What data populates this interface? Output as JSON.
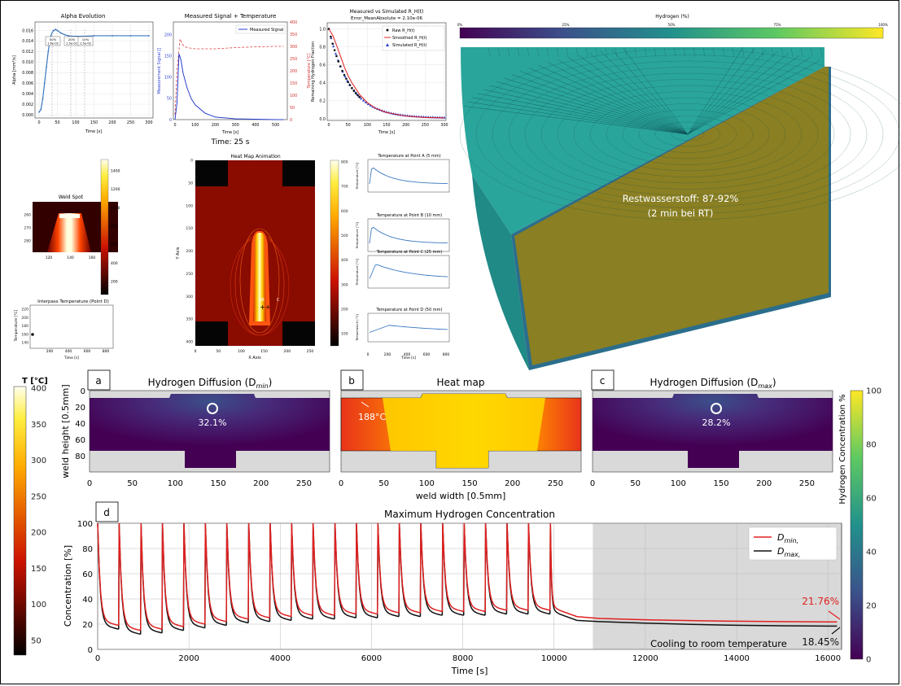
{
  "top_left": {
    "alpha": {
      "title": "Alpha Evolution",
      "ylabel": "Alpha [mm²/s]",
      "xlabel": "Time [s]",
      "xticks": [
        "0",
        "50",
        "100",
        "150",
        "200",
        "250",
        "300"
      ],
      "yticks": [
        "0.000",
        "0.002",
        "0.004",
        "0.006",
        "0.008",
        "0.010",
        "0.012",
        "0.014",
        "0.016"
      ],
      "markers": [
        "50%\n1.6e-02",
        "20%\n1.5e-02",
        "10%\n1.5e-02"
      ],
      "marker_labels": [
        "50%",
        "20%",
        "10%"
      ],
      "marker_values": [
        "1.6e-02",
        "1.5e-02",
        "1.5e-02"
      ],
      "chart_data": {
        "type": "line",
        "x": [
          0,
          5,
          10,
          15,
          20,
          25,
          30,
          35,
          40,
          45,
          50,
          60,
          70,
          80,
          90,
          100,
          120,
          150,
          200,
          250,
          300
        ],
        "y": [
          0.0005,
          0.001,
          0.003,
          0.006,
          0.009,
          0.012,
          0.0145,
          0.0155,
          0.016,
          0.0162,
          0.016,
          0.0155,
          0.0152,
          0.015,
          0.0149,
          0.0149,
          0.0149,
          0.015,
          0.015,
          0.015,
          0.015
        ],
        "xlim": [
          0,
          300
        ],
        "ylim": [
          0,
          0.017
        ]
      }
    },
    "signal": {
      "title": "Measured Signal + Temperature",
      "legend": "Measured Signal",
      "ylabel_left": "Measurement Signal []",
      "ylabel_right": "Temperature [°C]",
      "xlabel": "Time [s]",
      "xticks": [
        "0",
        "100",
        "200",
        "300",
        "400",
        "500"
      ],
      "yticks_left": [
        "0",
        "50",
        "100",
        "150",
        "200"
      ],
      "yticks_right": [
        "0",
        "50",
        "100",
        "150",
        "200",
        "250",
        "300",
        "350",
        "400"
      ],
      "chart_data": {
        "type": "line",
        "signal_x": [
          0,
          10,
          20,
          30,
          40,
          60,
          80,
          100,
          150,
          200,
          300,
          400,
          500,
          540
        ],
        "signal_y": [
          0,
          40,
          155,
          140,
          110,
          75,
          50,
          35,
          15,
          6,
          2,
          1,
          0,
          0
        ],
        "temp_x": [
          0,
          10,
          25,
          40,
          60,
          100,
          200,
          300,
          400,
          500,
          540
        ],
        "temp_y": [
          20,
          200,
          330,
          305,
          295,
          290,
          290,
          295,
          298,
          300,
          300
        ],
        "xlim": [
          0,
          550
        ],
        "ylim_left": [
          0,
          230
        ],
        "ylim_right": [
          0,
          400
        ]
      }
    },
    "time_label": "Time: 25 s",
    "remaining": {
      "title": "Measured vs Simulated R_H(t)",
      "subtitle": "Error_MeanAbsolute = 2.10e-06",
      "ylabel": "Remaining Hydrogen Fraction",
      "xlabel": "Time [s]",
      "legend": [
        "Raw R_H(t)",
        "Smoothed R_H(t)",
        "Simulated R_H(t)"
      ],
      "xticks": [
        "0",
        "50",
        "100",
        "150",
        "200",
        "250",
        "300"
      ],
      "yticks": [
        "0.0",
        "0.2",
        "0.4",
        "0.6",
        "0.8",
        "1.0"
      ],
      "chart_data": {
        "type": "scatter",
        "x": [
          0,
          10,
          20,
          30,
          40,
          50,
          60,
          80,
          100,
          120,
          150,
          200,
          250,
          300
        ],
        "y": [
          1.0,
          0.93,
          0.82,
          0.7,
          0.58,
          0.48,
          0.4,
          0.27,
          0.18,
          0.12,
          0.07,
          0.03,
          0.015,
          0.01
        ],
        "xlim": [
          0,
          300
        ],
        "ylim": [
          0,
          1.05
        ]
      }
    },
    "hydrogen_bar": {
      "title": "Hydrogen (%)",
      "ticks": [
        "0%",
        "25%",
        "50%",
        "75%",
        "100%"
      ]
    },
    "cylinder_label_1": "Restwasserstoff: 87-92%",
    "cylinder_label_2": "(2 min bei RT)",
    "weld_spot": {
      "title": "Weld Spot",
      "yticks": [
        "260",
        "270",
        "280"
      ],
      "xticks": [
        "120",
        "140",
        "160"
      ],
      "cbar_ticks": [
        "200",
        "400",
        "600",
        "800",
        "1000",
        "1200",
        "1400"
      ]
    },
    "interpass": {
      "title": "Interpass Temperature (Point D)",
      "ylabel": "Temperature [°C]",
      "xlabel": "Time [s]",
      "yticks": [
        "140",
        "160",
        "180",
        "200",
        "220"
      ],
      "xticks": [
        "200",
        "400",
        "600",
        "800"
      ]
    },
    "heatmap_anim": {
      "title": "Heat Map Animation",
      "ylabel": "Y Axis",
      "xlabel": "X Axis",
      "yticks": [
        "0",
        "50",
        "100",
        "150",
        "200",
        "250",
        "300",
        "350",
        "400"
      ],
      "xticks": [
        "0",
        "50",
        "100",
        "150",
        "200",
        "250"
      ],
      "cbar_ticks": [
        "100",
        "200",
        "300",
        "400",
        "500",
        "600",
        "700",
        "800"
      ],
      "points": "AB",
      "point_c": "C"
    },
    "point_plots": [
      {
        "title": "Temperature at Point A (5 mm)",
        "ylabel": "Temperature [°C]"
      },
      {
        "title": "Temperature at Point B (10 mm)",
        "ylabel": "Temperature [°C]"
      },
      {
        "title": "Temperature at Point C (25 mm)",
        "ylabel": "Temperature [°C]"
      },
      {
        "title": "Temperature at Point D (50 mm)",
        "ylabel": "Temperature [°C]"
      }
    ],
    "point_xlabel": "Time [s]",
    "point_xticks": [
      "0",
      "200",
      "400",
      "600",
      "800"
    ]
  },
  "panels": {
    "a": {
      "letter": "a",
      "title": "Hydrogen Diffusion (D",
      "title_sub": "min",
      "value": "32.1%"
    },
    "b": {
      "letter": "b",
      "title": "Heat map",
      "value": "188°C"
    },
    "c": {
      "letter": "c",
      "title": "Hydrogen Diffusion (D",
      "title_sub": "max",
      "value": "28.2%"
    },
    "ylabel": "weld height [0.5mm]",
    "xlabel": "weld width [0.5mm]",
    "yticks": [
      "0",
      "20",
      "40",
      "60",
      "80"
    ],
    "xticks": [
      "0",
      "50",
      "100",
      "150",
      "200",
      "250"
    ]
  },
  "temp_cbar": {
    "title": "T [°C]",
    "ticks": [
      "400",
      "350",
      "300",
      "250",
      "200",
      "150",
      "100",
      "50"
    ]
  },
  "hyd_cbar": {
    "label": "Hydrogen Concentration %",
    "ticks": [
      "100",
      "80",
      "60",
      "40",
      "20",
      "0"
    ]
  },
  "panel_d": {
    "letter": "d",
    "title": "Maximum Hydrogen Concentration",
    "ylabel": "Concentration [%]",
    "xlabel": "Time [s]",
    "yticks": [
      "0",
      "20",
      "40",
      "60",
      "80",
      "100"
    ],
    "xticks": [
      "0",
      "2000",
      "4000",
      "6000",
      "8000",
      "10000",
      "12000",
      "14000",
      "16000"
    ],
    "legend_dmin": "D",
    "legend_dmin_sub": "min,",
    "legend_dmax": "D",
    "legend_dmax_sub": "max,",
    "cooling_label": "Cooling to room temperature",
    "final_dmin": "21.76%",
    "final_dmax": "18.45%",
    "chart_data": {
      "type": "line",
      "xlim": [
        0,
        16300
      ],
      "ylim": [
        0,
        100
      ],
      "pass_start_times": [
        0,
        470,
        950,
        1420,
        1890,
        2360,
        2830,
        3310,
        3780,
        4250,
        4720,
        5200,
        5670,
        6140,
        6610,
        7080,
        7560,
        8030,
        8500,
        8970,
        9440,
        9920
      ],
      "pass_end_times": [
        460,
        940,
        1410,
        1880,
        2350,
        2820,
        3300,
        3770,
        4240,
        4710,
        5190,
        5660,
        6130,
        6600,
        7070,
        7550,
        8020,
        8490,
        8960,
        9430,
        9910,
        10120
      ],
      "dmin_trough_values": [
        19,
        15,
        16,
        18,
        20,
        22,
        24,
        25,
        26,
        27,
        27,
        28,
        28,
        29,
        29,
        30,
        30,
        30,
        31,
        31,
        31,
        31
      ],
      "dmax_trough_values": [
        16,
        12,
        13,
        15,
        17,
        19,
        21,
        22,
        23,
        24,
        24,
        25,
        25,
        26,
        26,
        27,
        27,
        27,
        28,
        28,
        28,
        28
      ],
      "cooling_start": 10850,
      "cooling_x": [
        10120,
        10500,
        11000,
        12000,
        13000,
        14000,
        15000,
        16200
      ],
      "dmin_cooling_y": [
        31,
        26,
        24.5,
        23.5,
        22.8,
        22.3,
        22.0,
        21.76
      ],
      "dmax_cooling_y": [
        28,
        23,
        22,
        20.8,
        19.8,
        19.1,
        18.7,
        18.45
      ],
      "series": [
        {
          "name": "D_min"
        },
        {
          "name": "D_max"
        }
      ]
    }
  },
  "colors": {
    "dmin": "#e02020",
    "dmax": "#111111",
    "viridis_dark": "#440154",
    "viridis_mid": "#21918c",
    "viridis_light": "#fde725",
    "heat_dark": "#000000",
    "heat_red": "#cc1100",
    "heat_yellow": "#ffee00",
    "cooling_bg": "#d9d9d9"
  }
}
